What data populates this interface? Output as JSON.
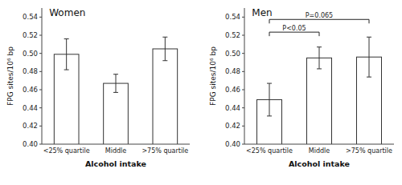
{
  "chart_data": [
    {
      "type": "bar",
      "title": "Women",
      "categories": [
        "<25% quartile",
        "Middle",
        ">75% quartile"
      ],
      "values": [
        0.499,
        0.467,
        0.505
      ],
      "errors": [
        0.017,
        0.01,
        0.013
      ],
      "ylabel": "FPG sites/10⁶ bp",
      "xlabel": "Alcohol intake",
      "color": "#ffffff",
      "ylim": [
        0.4,
        0.55
      ],
      "yticks": [
        {
          "value": 0.4,
          "label": "0.40"
        },
        {
          "value": 0.42,
          "label": "0.42"
        },
        {
          "value": 0.44,
          "label": "0.44"
        },
        {
          "value": 0.46,
          "label": "0.46"
        },
        {
          "value": 0.48,
          "label": "0.48"
        },
        {
          "value": 0.5,
          "label": "0.50"
        },
        {
          "value": 0.52,
          "label": "0.52"
        },
        {
          "value": 0.54,
          "label": "0.54"
        }
      ]
    },
    {
      "type": "bar",
      "title": "Men",
      "categories": [
        "<25% quartile",
        "Middle",
        ">75% quartile"
      ],
      "values": [
        0.449,
        0.495,
        0.496
      ],
      "errors": [
        0.018,
        0.012,
        0.022
      ],
      "ylabel": "FPG sites/10⁶ bp",
      "xlabel": "Alcohol intake",
      "color": "#ffffff",
      "ylim": [
        0.4,
        0.55
      ],
      "yticks": [
        {
          "value": 0.4,
          "label": "0.40"
        },
        {
          "value": 0.42,
          "label": "0.42"
        },
        {
          "value": 0.44,
          "label": "0.44"
        },
        {
          "value": 0.46,
          "label": "0.46"
        },
        {
          "value": 0.48,
          "label": "0.48"
        },
        {
          "value": 0.5,
          "label": "0.50"
        },
        {
          "value": 0.52,
          "label": "0.52"
        },
        {
          "value": 0.54,
          "label": "0.54"
        }
      ],
      "annotations": [
        {
          "text": "P<0.05",
          "from": "<25% quartile",
          "to": "Middle",
          "y": 0.519
        },
        {
          "text": "P=0.065",
          "from": "<25% quartile",
          "to": ">75% quartile",
          "y": 0.533
        }
      ]
    }
  ]
}
